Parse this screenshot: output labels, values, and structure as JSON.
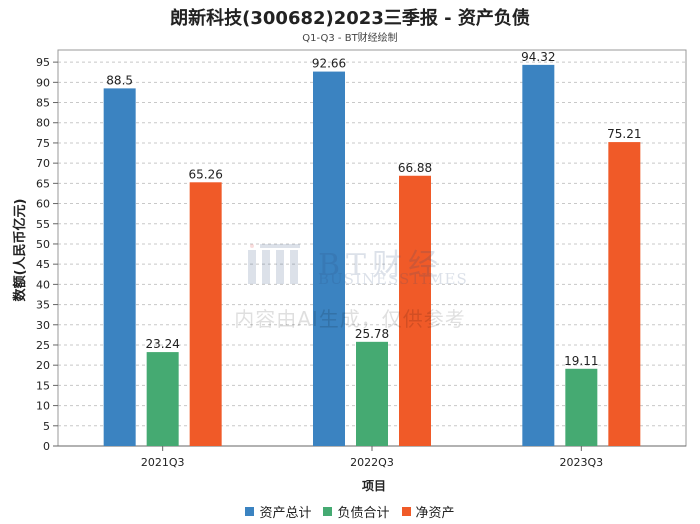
{
  "chart_data": {
    "type": "bar",
    "title": "朗新科技(300682)2023三季报 - 资产负债",
    "subtitle": "Q1-Q3 - BT财经绘制",
    "xlabel": "项目",
    "ylabel": "数额(人民币亿元)",
    "categories": [
      "2021Q3",
      "2022Q3",
      "2023Q3"
    ],
    "series": [
      {
        "name": "资产总计",
        "color": "#3b83c1",
        "values": [
          88.5,
          92.66,
          94.32
        ]
      },
      {
        "name": "负债合计",
        "color": "#45aa72",
        "values": [
          23.24,
          25.78,
          19.11
        ]
      },
      {
        "name": "净资产",
        "color": "#f05a28",
        "values": [
          65.26,
          66.88,
          75.21
        ]
      }
    ],
    "ylim": [
      0,
      98
    ],
    "yticks": [
      0,
      5,
      10,
      15,
      20,
      25,
      30,
      35,
      40,
      45,
      50,
      55,
      60,
      65,
      70,
      75,
      80,
      85,
      90,
      95
    ],
    "grid": true,
    "legend_position": "bottom"
  },
  "watermark": {
    "logo_text": "BT财经",
    "logo_subtext": "BUSINESSTIMES",
    "notice": "内容由AI生成，仅供参考"
  }
}
